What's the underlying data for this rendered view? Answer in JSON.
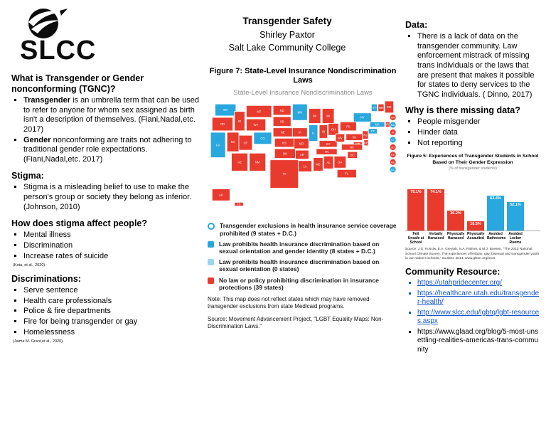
{
  "logo": {
    "text": "SLCC"
  },
  "header": {
    "title": "Transgender Safety",
    "author": "Shirley Paxtor",
    "institution": "Salt Lake Community College"
  },
  "left": {
    "tgnc_heading": "What is Transgender or Gender nonconforming (TGNC)?",
    "tgnc_bullets": [
      {
        "lead": "Transgender",
        "rest": " is an umbrella term that can be used to refer to anyone for whom sex assigned as birth isn't a description of themselves. (Fiani,Nadal,etc. 2017)"
      },
      {
        "lead": "Gender",
        "rest": " nonconforming are traits not adhering to traditional gender role expectations. (Fiani,Nadal,etc. 2017)"
      }
    ],
    "stigma_heading": "Stigma:",
    "stigma_bullet": "Stigma is a misleading belief to use to make the person's group or society they belong as inferior. (Johnson, 2010)",
    "affect_heading": "How does stigma affect people?",
    "affect_bullets": [
      "Mental illness",
      "Discrimination",
      "Increase rates of suicide"
    ],
    "affect_citation": "(Kota, et al., 2020)",
    "discrimination_heading": "Discriminations:",
    "discrimination_bullets": [
      "Serve sentence",
      "Health care professionals",
      "Police & fire departments",
      "Fire for being transgender or gay",
      "Homelessness"
    ],
    "discrimination_citation": "(Jaime M. Grant,et al., 2020)."
  },
  "map_figure": {
    "title": "Figure 7: State-Level Insurance Nondiscrimination Laws",
    "subtitle": "State-Level Insurance Nondiscrimination Laws",
    "colors": {
      "protected_blue": "#29a7df",
      "light_blue": "#9ad6ef",
      "no_law_red": "#e83b2e"
    },
    "blue_states": [
      "WA",
      "CA",
      "CO",
      "MN",
      "IL",
      "NY",
      "VT",
      "MA",
      "CT",
      "DC"
    ],
    "callout_states": [
      "NH",
      "MA",
      "RI",
      "CT",
      "NJ",
      "DE",
      "MD",
      "DC"
    ],
    "legend": [
      {
        "marker": "ring",
        "color": "#29a7df",
        "text": "Transgender exclusions in health insurance service coverage prohibited (9 states + D.C.)"
      },
      {
        "marker": "square",
        "color": "#29a7df",
        "text": "Law prohibits health insurance discrimination based on sexual orientation and gender identity (8 states + D.C.)"
      },
      {
        "marker": "square",
        "color": "#9ad6ef",
        "text": "Law prohibits health insurance discrimination based on sexual orientation (0 states)"
      },
      {
        "marker": "square",
        "color": "#e83b2e",
        "text": "No law or policy prohibiting discrimination in insurance protections (39 states)"
      }
    ],
    "note": "Note: This map does not reflect states which may have removed transgender exclusions from state Medicaid programs.",
    "source": "Source: Movement Advancement Project, \"LGBT Equality Maps: Non-Discrimination Laws.\""
  },
  "right": {
    "data_heading": "Data:",
    "data_bullet": "There is a lack of data on the transgender community. Law enforcement mistrack of missing trans individuals or the laws that are present that makes it possible for states to deny services to the TGNC individuals. ( Dinno, 2017)",
    "missing_heading": "Why is there missing data?",
    "missing_bullets": [
      "People misgender",
      "Hinder data",
      "Not reporting"
    ],
    "community_heading": "Community Resource:",
    "resources": [
      {
        "text": "https://utahpridecenter.org/",
        "style": "link"
      },
      {
        "text": "https://healthcare.utah.edu/transgender-health/",
        "style": "link"
      },
      {
        "text": "http://www.slcc.edu/lgbtq/lgbt-resources.aspx",
        "style": "link"
      },
      {
        "text": "https://www.glaad.org/blog/5-most-unsettling-realities-americas-trans-community",
        "style": "plain"
      }
    ]
  },
  "chart_data": {
    "type": "bar",
    "title": "Figure 5: Experiences of Transgender Students in School Based on Their Gender Expression",
    "subtitle": "(% of transgender students)",
    "categories": [
      "Felt Unsafe at School",
      "Verbally Harassed",
      "Physically Harassed",
      "Physically Assaulted",
      "Avoided Bathrooms",
      "Avoided Locker Rooms"
    ],
    "values": [
      75.1,
      74.1,
      36.2,
      16.5,
      63.4,
      52.1
    ],
    "labels": [
      "75.1%",
      "74.1%",
      "36.2%",
      "16.5%",
      "63.4%",
      "52.1%"
    ],
    "colors": [
      "#e83b2e",
      "#e83b2e",
      "#e83b2e",
      "#e83b2e",
      "#29a7df",
      "#29a7df"
    ],
    "ylim": [
      0,
      100
    ],
    "grid": false,
    "legend_position": "none",
    "source": "Source: J.G. Kosciw, E.A. Greytak, N.A. Palmer, & M.J. Boesen, \"The 2013 National School Climate Survey: The experiences of lesbian, gay, bisexual and transgender youth in our nation's schools,\" GLSEN, 2014, www.glsen.org/nscs."
  }
}
